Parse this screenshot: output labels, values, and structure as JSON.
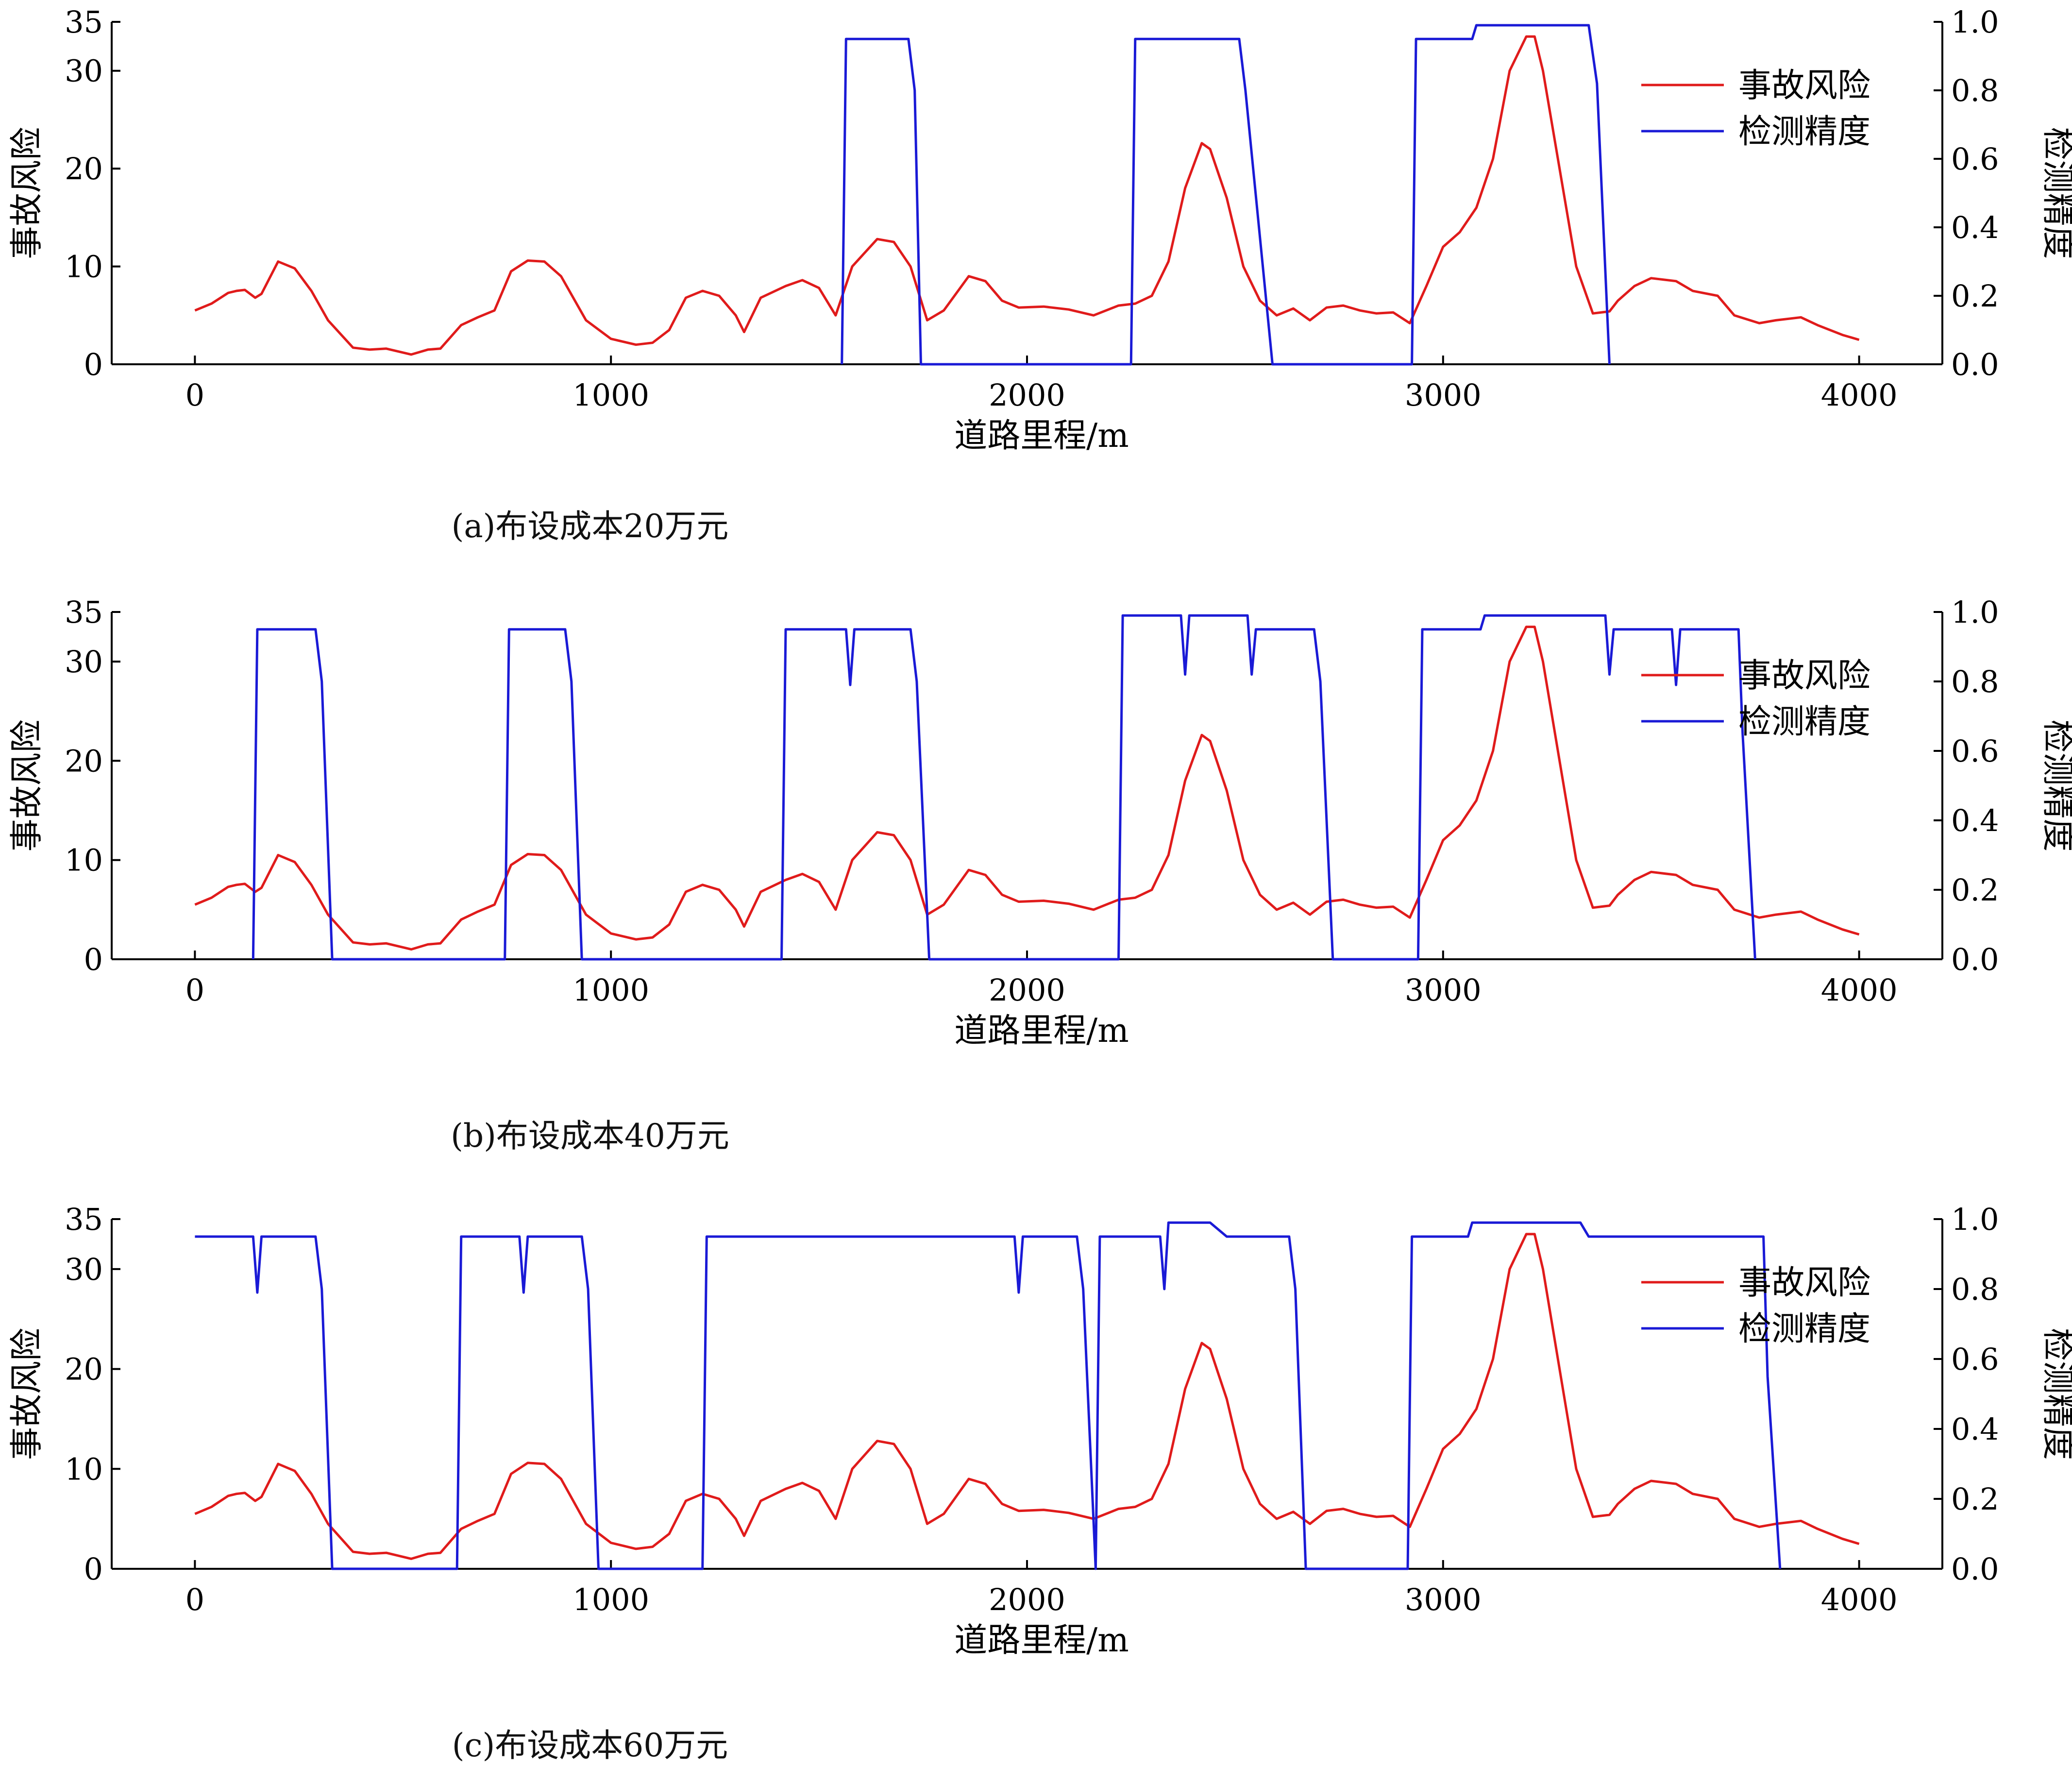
{
  "colors": {
    "risk": "#e01b1b",
    "accuracy": "#1a1ad6",
    "axis": "#000000"
  },
  "chart_data": [
    {
      "type": "line",
      "caption": "(a)布设成本20万元",
      "xlabel": "道路里程/m",
      "ylabel_left": "事故风险",
      "ylabel_right": "检测精度",
      "xlim": [
        -200,
        4200
      ],
      "xticks": [
        0,
        1000,
        2000,
        3000,
        4000
      ],
      "ylim_left": [
        0,
        35
      ],
      "yticks_left": [
        0,
        10,
        20,
        30,
        35
      ],
      "ylim_right": [
        0,
        1.0
      ],
      "yticks_right": [
        "0.0",
        "0.2",
        "0.4",
        "0.6",
        "0.8",
        "1.0"
      ],
      "legend": {
        "placement": "top-right",
        "entries": [
          "事故风险",
          "检测精度"
        ]
      },
      "series": [
        {
          "name": "事故风险",
          "axis": "left",
          "x": [
            0,
            40,
            80,
            100,
            120,
            145,
            160,
            200,
            240,
            280,
            320,
            380,
            420,
            460,
            520,
            560,
            590,
            640,
            680,
            720,
            760,
            800,
            840,
            880,
            940,
            1000,
            1060,
            1100,
            1140,
            1180,
            1220,
            1260,
            1300,
            1320,
            1360,
            1420,
            1460,
            1500,
            1540,
            1580,
            1640,
            1680,
            1720,
            1760,
            1800,
            1860,
            1900,
            1940,
            1980,
            2040,
            2100,
            2160,
            2220,
            2260,
            2300,
            2340,
            2380,
            2420,
            2440,
            2480,
            2520,
            2560,
            2600,
            2640,
            2680,
            2720,
            2760,
            2800,
            2840,
            2880,
            2920,
            2960,
            3000,
            3040,
            3080,
            3120,
            3160,
            3200,
            3220,
            3240,
            3280,
            3320,
            3360,
            3400,
            3420,
            3460,
            3500,
            3560,
            3600,
            3660,
            3700,
            3760,
            3800,
            3860,
            3900,
            3960,
            4000
          ],
          "y": [
            5.5,
            6.2,
            7.3,
            7.5,
            7.6,
            6.8,
            7.2,
            10.5,
            9.8,
            7.5,
            4.5,
            1.7,
            1.5,
            1.6,
            1.0,
            1.5,
            1.6,
            4.0,
            4.8,
            5.5,
            9.5,
            10.6,
            10.5,
            9.0,
            4.5,
            2.6,
            2.0,
            2.2,
            3.5,
            6.8,
            7.5,
            7.0,
            5.0,
            3.3,
            6.8,
            8.0,
            8.6,
            7.8,
            5.0,
            10.0,
            12.8,
            12.5,
            10.0,
            4.5,
            5.5,
            9.0,
            8.5,
            6.5,
            5.8,
            5.9,
            5.6,
            5.0,
            6.0,
            6.2,
            7.0,
            10.5,
            18.0,
            22.6,
            22.0,
            17.0,
            10.0,
            6.5,
            5.0,
            5.7,
            4.5,
            5.8,
            6.0,
            5.5,
            5.2,
            5.3,
            4.2,
            8.0,
            12.0,
            13.5,
            16.0,
            21.0,
            30.0,
            33.5,
            33.5,
            30.0,
            20.0,
            10.0,
            5.2,
            5.4,
            6.5,
            8.0,
            8.8,
            8.5,
            7.5,
            7.0,
            5.0,
            4.2,
            4.5,
            4.8,
            4.0,
            3.0,
            2.5
          ]
        },
        {
          "name": "检测精度",
          "axis": "right",
          "x": [
            1555,
            1565,
            1715,
            1730,
            1745,
            2250,
            2260,
            2510,
            2525,
            2590,
            2925,
            2935,
            3070,
            3080,
            3350,
            3370,
            3400
          ],
          "y": [
            0,
            0.95,
            0.95,
            0.8,
            0,
            0,
            0.95,
            0.95,
            0.8,
            0,
            0,
            0.95,
            0.95,
            0.99,
            0.99,
            0.82,
            0
          ]
        }
      ]
    },
    {
      "type": "line",
      "caption": "(b)布设成本40万元",
      "xlabel": "道路里程/m",
      "ylabel_left": "事故风险",
      "ylabel_right": "检测精度",
      "xlim": [
        -200,
        4200
      ],
      "xticks": [
        0,
        1000,
        2000,
        3000,
        4000
      ],
      "ylim_left": [
        0,
        35
      ],
      "yticks_left": [
        0,
        10,
        20,
        30,
        35
      ],
      "ylim_right": [
        0,
        1.0
      ],
      "yticks_right": [
        "0.0",
        "0.2",
        "0.4",
        "0.6",
        "0.8",
        "1.0"
      ],
      "legend": {
        "placement": "top-right",
        "entries": [
          "事故风险",
          "检测精度"
        ]
      },
      "series": [
        {
          "name": "事故风险",
          "axis": "left",
          "x": [
            0,
            40,
            80,
            100,
            120,
            145,
            160,
            200,
            240,
            280,
            320,
            380,
            420,
            460,
            520,
            560,
            590,
            640,
            680,
            720,
            760,
            800,
            840,
            880,
            940,
            1000,
            1060,
            1100,
            1140,
            1180,
            1220,
            1260,
            1300,
            1320,
            1360,
            1420,
            1460,
            1500,
            1540,
            1580,
            1640,
            1680,
            1720,
            1760,
            1800,
            1860,
            1900,
            1940,
            1980,
            2040,
            2100,
            2160,
            2220,
            2260,
            2300,
            2340,
            2380,
            2420,
            2440,
            2480,
            2520,
            2560,
            2600,
            2640,
            2680,
            2720,
            2760,
            2800,
            2840,
            2880,
            2920,
            2960,
            3000,
            3040,
            3080,
            3120,
            3160,
            3200,
            3220,
            3240,
            3280,
            3320,
            3360,
            3400,
            3420,
            3460,
            3500,
            3560,
            3600,
            3660,
            3700,
            3760,
            3800,
            3860,
            3900,
            3960,
            4000
          ],
          "y": [
            5.5,
            6.2,
            7.3,
            7.5,
            7.6,
            6.8,
            7.2,
            10.5,
            9.8,
            7.5,
            4.5,
            1.7,
            1.5,
            1.6,
            1.0,
            1.5,
            1.6,
            4.0,
            4.8,
            5.5,
            9.5,
            10.6,
            10.5,
            9.0,
            4.5,
            2.6,
            2.0,
            2.2,
            3.5,
            6.8,
            7.5,
            7.0,
            5.0,
            3.3,
            6.8,
            8.0,
            8.6,
            7.8,
            5.0,
            10.0,
            12.8,
            12.5,
            10.0,
            4.5,
            5.5,
            9.0,
            8.5,
            6.5,
            5.8,
            5.9,
            5.6,
            5.0,
            6.0,
            6.2,
            7.0,
            10.5,
            18.0,
            22.6,
            22.0,
            17.0,
            10.0,
            6.5,
            5.0,
            5.7,
            4.5,
            5.8,
            6.0,
            5.5,
            5.2,
            5.3,
            4.2,
            8.0,
            12.0,
            13.5,
            16.0,
            21.0,
            30.0,
            33.5,
            33.5,
            30.0,
            20.0,
            10.0,
            5.2,
            5.4,
            6.5,
            8.0,
            8.8,
            8.5,
            7.5,
            7.0,
            5.0,
            4.2,
            4.5,
            4.8,
            4.0,
            3.0,
            2.5
          ]
        },
        {
          "name": "检测精度",
          "axis": "right",
          "x": [
            140,
            150,
            290,
            305,
            330,
            745,
            755,
            890,
            905,
            930,
            1410,
            1420,
            1565,
            1575,
            1585,
            1720,
            1735,
            1765,
            2220,
            2230,
            2370,
            2380,
            2390,
            2530,
            2540,
            2550,
            2690,
            2705,
            2735,
            2940,
            2950,
            3090,
            3100,
            3390,
            3400,
            3410,
            3550,
            3560,
            3570,
            3710,
            3720,
            3750
          ],
          "y": [
            0,
            0.95,
            0.95,
            0.8,
            0,
            0,
            0.95,
            0.95,
            0.8,
            0,
            0,
            0.95,
            0.95,
            0.79,
            0.95,
            0.95,
            0.8,
            0,
            0,
            0.99,
            0.99,
            0.82,
            0.99,
            0.99,
            0.82,
            0.95,
            0.95,
            0.8,
            0,
            0,
            0.95,
            0.95,
            0.99,
            0.99,
            0.82,
            0.95,
            0.95,
            0.79,
            0.95,
            0.95,
            0.65,
            0
          ]
        }
      ]
    },
    {
      "type": "line",
      "caption": "(c)布设成本60万元",
      "xlabel": "道路里程/m",
      "ylabel_left": "事故风险",
      "ylabel_right": "检测精度",
      "xlim": [
        -200,
        4200
      ],
      "xticks": [
        0,
        1000,
        2000,
        3000,
        4000
      ],
      "ylim_left": [
        0,
        35
      ],
      "yticks_left": [
        0,
        10,
        20,
        30,
        35
      ],
      "ylim_right": [
        0,
        1.0
      ],
      "yticks_right": [
        "0.0",
        "0.2",
        "0.4",
        "0.6",
        "0.8",
        "1.0"
      ],
      "legend": {
        "placement": "top-right",
        "entries": [
          "事故风险",
          "检测精度"
        ]
      },
      "series": [
        {
          "name": "事故风险",
          "axis": "left",
          "x": [
            0,
            40,
            80,
            100,
            120,
            145,
            160,
            200,
            240,
            280,
            320,
            380,
            420,
            460,
            520,
            560,
            590,
            640,
            680,
            720,
            760,
            800,
            840,
            880,
            940,
            1000,
            1060,
            1100,
            1140,
            1180,
            1220,
            1260,
            1300,
            1320,
            1360,
            1420,
            1460,
            1500,
            1540,
            1580,
            1640,
            1680,
            1720,
            1760,
            1800,
            1860,
            1900,
            1940,
            1980,
            2040,
            2100,
            2160,
            2220,
            2260,
            2300,
            2340,
            2380,
            2420,
            2440,
            2480,
            2520,
            2560,
            2600,
            2640,
            2680,
            2720,
            2760,
            2800,
            2840,
            2880,
            2920,
            2960,
            3000,
            3040,
            3080,
            3120,
            3160,
            3200,
            3220,
            3240,
            3280,
            3320,
            3360,
            3400,
            3420,
            3460,
            3500,
            3560,
            3600,
            3660,
            3700,
            3760,
            3800,
            3860,
            3900,
            3960,
            4000
          ],
          "y": [
            5.5,
            6.2,
            7.3,
            7.5,
            7.6,
            6.8,
            7.2,
            10.5,
            9.8,
            7.5,
            4.5,
            1.7,
            1.5,
            1.6,
            1.0,
            1.5,
            1.6,
            4.0,
            4.8,
            5.5,
            9.5,
            10.6,
            10.5,
            9.0,
            4.5,
            2.6,
            2.0,
            2.2,
            3.5,
            6.8,
            7.5,
            7.0,
            5.0,
            3.3,
            6.8,
            8.0,
            8.6,
            7.8,
            5.0,
            10.0,
            12.8,
            12.5,
            10.0,
            4.5,
            5.5,
            9.0,
            8.5,
            6.5,
            5.8,
            5.9,
            5.6,
            5.0,
            6.0,
            6.2,
            7.0,
            10.5,
            18.0,
            22.6,
            22.0,
            17.0,
            10.0,
            6.5,
            5.0,
            5.7,
            4.5,
            5.8,
            6.0,
            5.5,
            5.2,
            5.3,
            4.2,
            8.0,
            12.0,
            13.5,
            16.0,
            21.0,
            30.0,
            33.5,
            33.5,
            30.0,
            20.0,
            10.0,
            5.2,
            5.4,
            6.5,
            8.0,
            8.8,
            8.5,
            7.5,
            7.0,
            5.0,
            4.2,
            4.5,
            4.8,
            4.0,
            3.0,
            2.5
          ]
        },
        {
          "name": "检测精度",
          "axis": "right",
          "x": [
            0,
            140,
            150,
            160,
            290,
            305,
            330,
            630,
            640,
            780,
            790,
            800,
            930,
            945,
            970,
            1220,
            1230,
            1970,
            1980,
            1990,
            2120,
            2135,
            2165,
            2175,
            2320,
            2330,
            2340,
            2440,
            2480,
            2630,
            2645,
            2670,
            2915,
            2925,
            3060,
            3070,
            3330,
            3350,
            3770,
            3780,
            3810
          ],
          "y": [
            0.95,
            0.95,
            0.79,
            0.95,
            0.95,
            0.8,
            0,
            0,
            0.95,
            0.95,
            0.79,
            0.95,
            0.95,
            0.8,
            0,
            0,
            0.95,
            0.95,
            0.79,
            0.95,
            0.95,
            0.8,
            0,
            0.95,
            0.95,
            0.8,
            0.99,
            0.99,
            0.95,
            0.95,
            0.8,
            0,
            0,
            0.95,
            0.95,
            0.99,
            0.99,
            0.95,
            0.95,
            0.55,
            0
          ]
        }
      ]
    }
  ]
}
